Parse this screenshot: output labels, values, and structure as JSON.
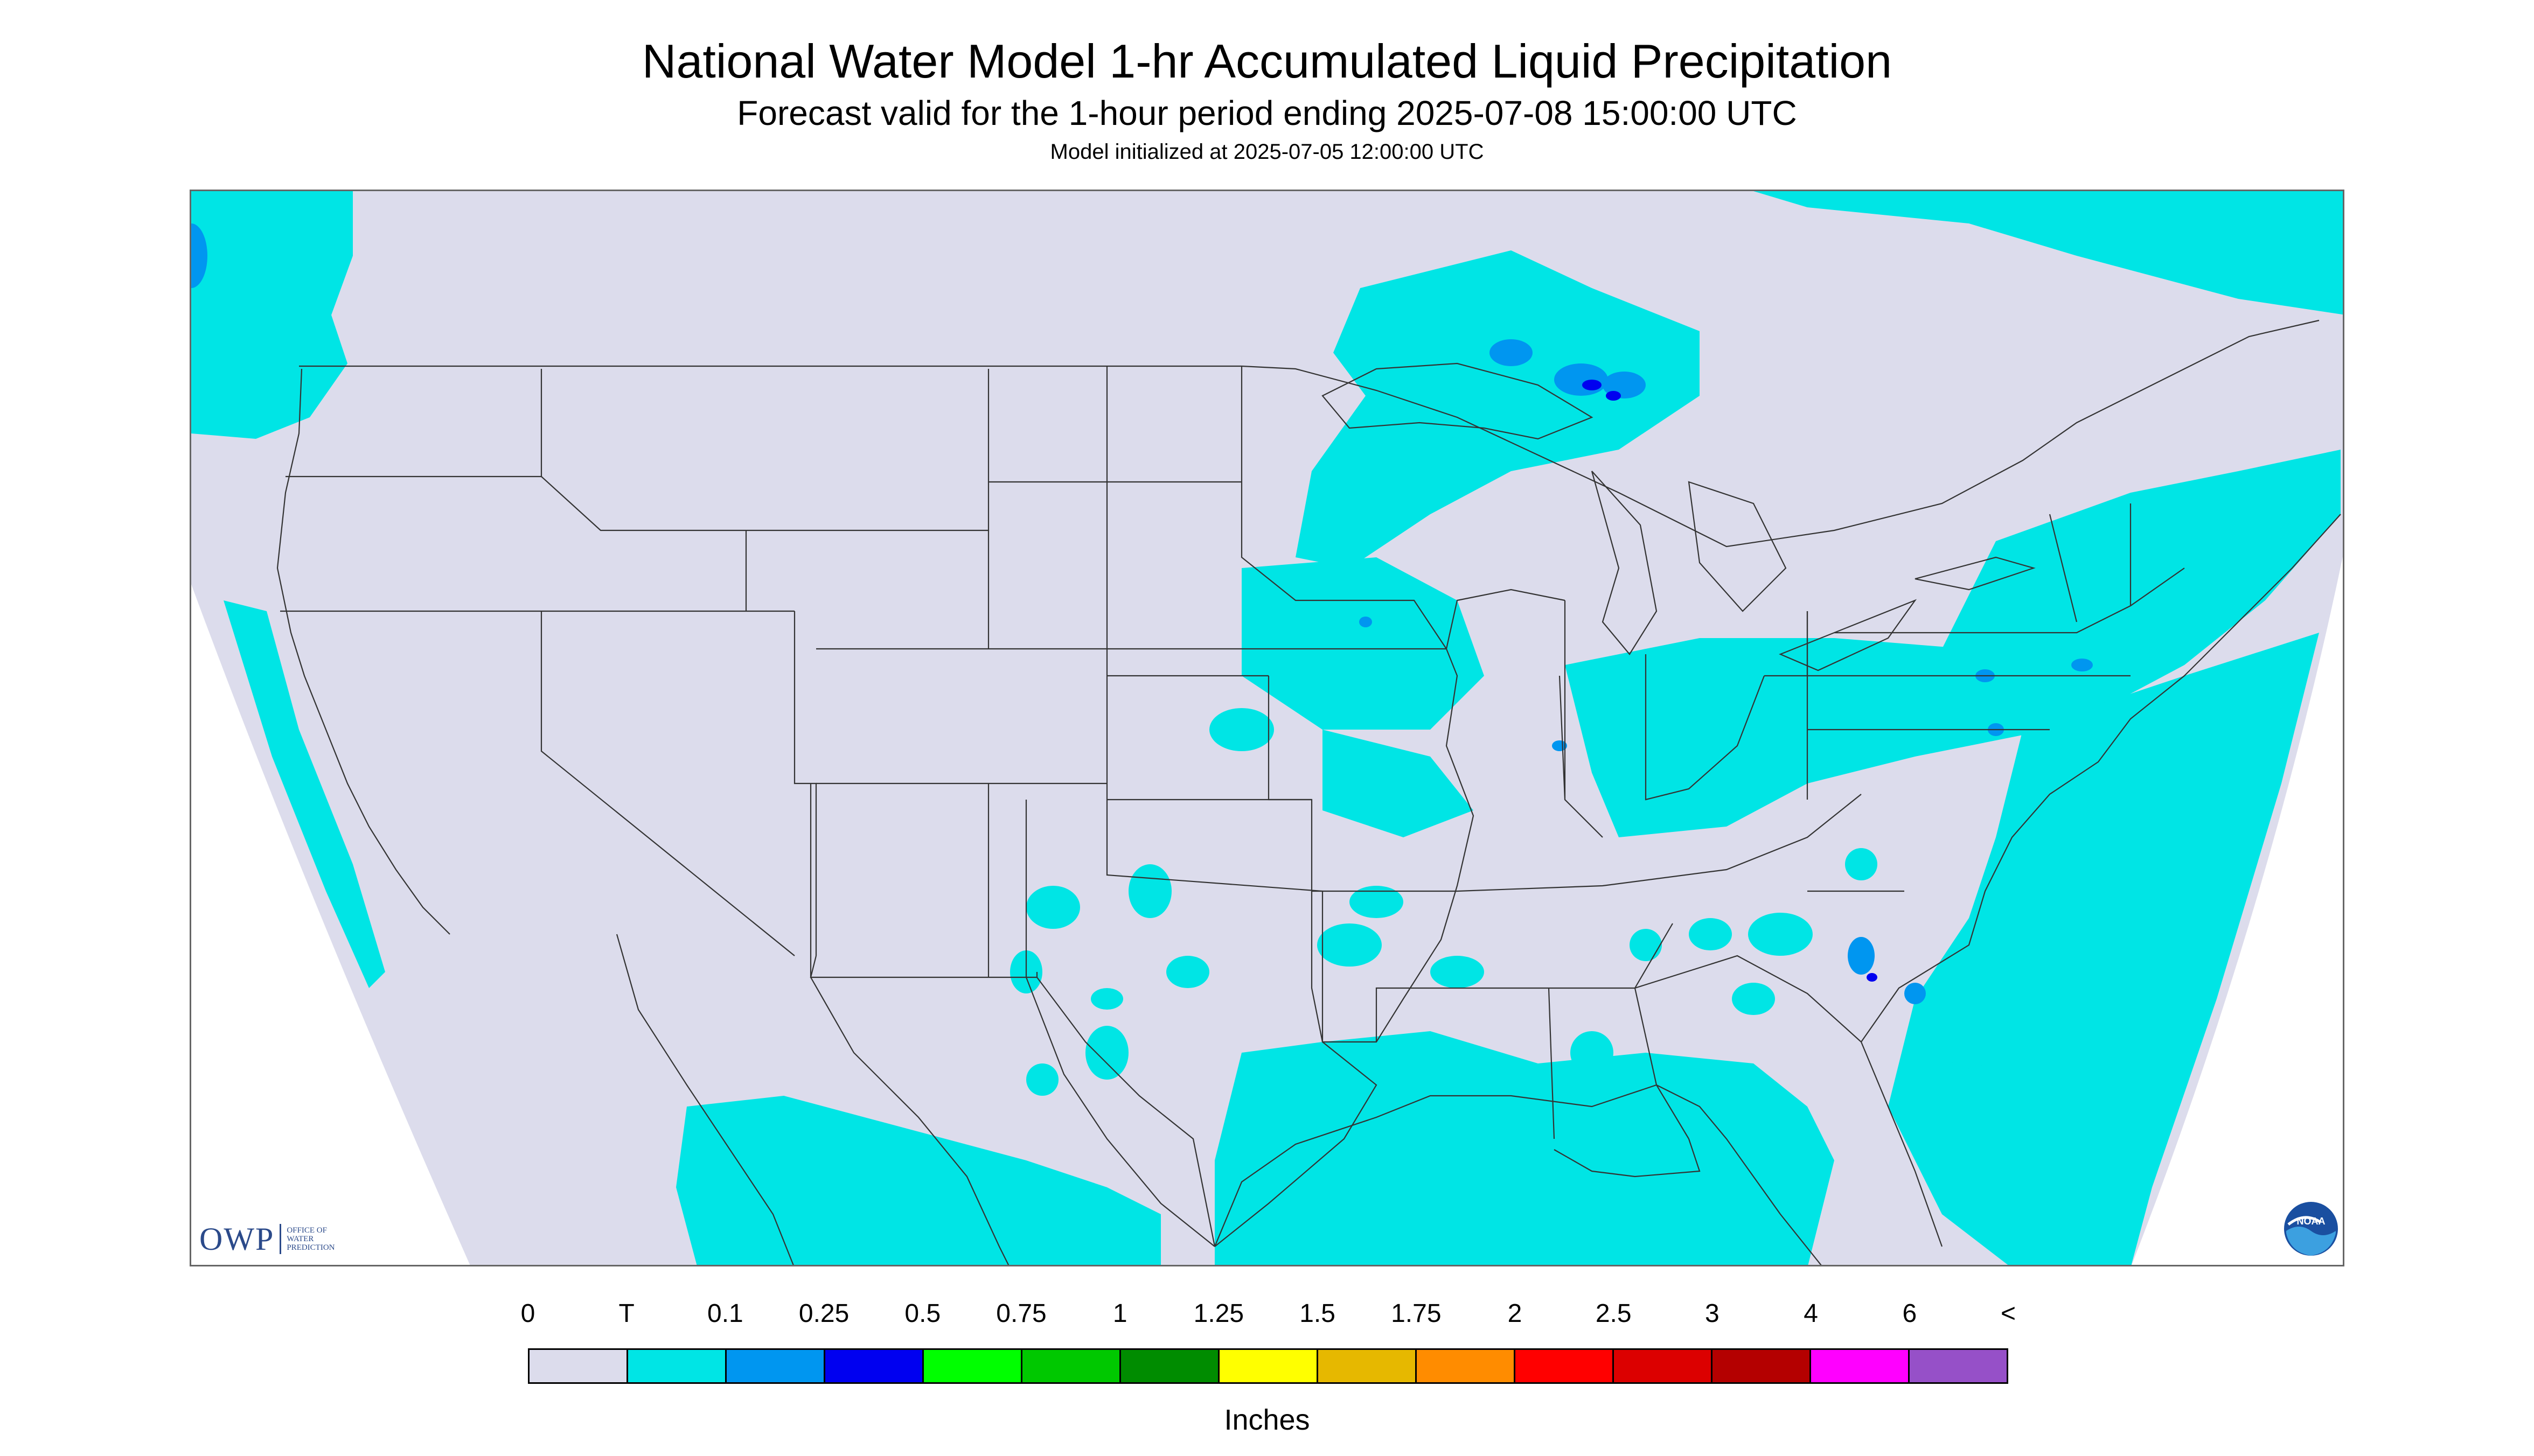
{
  "title": "National Water Model 1-hr Accumulated Liquid Precipitation",
  "subtitle": "Forecast valid for the 1-hour period ending 2025-07-08 15:00:00 UTC",
  "init_text": "Model initialized at 2025-07-05 12:00:00 UTC",
  "logos": {
    "owp": {
      "letters": "OWP",
      "text": "OFFICE OF WATER PREDICTION"
    },
    "noaa": {
      "text": "NOAA"
    }
  },
  "legend": {
    "units": "Inches",
    "labels": [
      "0",
      "T",
      "0.1",
      "0.25",
      "0.5",
      "0.75",
      "1",
      "1.25",
      "1.5",
      "1.75",
      "2",
      "2.5",
      "3",
      "4",
      "6",
      "<"
    ],
    "colors": [
      "#dcdcec",
      "#00e5e5",
      "#0096f0",
      "#0000f0",
      "#00ff00",
      "#00c800",
      "#008c00",
      "#ffff00",
      "#e6b800",
      "#ff8c00",
      "#ff0000",
      "#dc0000",
      "#b40000",
      "#ff00ff",
      "#9650c8"
    ]
  },
  "map": {
    "background": "#dcdcec",
    "trace_color": "#00e5e5",
    "heavy_color": "#0096f0",
    "core_color": "#0000f0",
    "border_color": "#333333"
  }
}
